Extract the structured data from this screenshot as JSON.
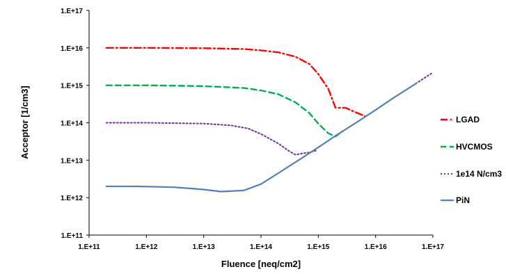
{
  "chart_data": {
    "type": "line",
    "xlabel": "Fluence [neq/cm2]",
    "ylabel": "Acceptor [1/cm3]",
    "x_scale": "log",
    "y_scale": "log",
    "xlim": [
      100000000000.0,
      1e+17
    ],
    "ylim": [
      100000000000.0,
      1e+17
    ],
    "x_ticks": [
      {
        "value": 100000000000.0,
        "label": "1.E+11"
      },
      {
        "value": 1000000000000.0,
        "label": "1.E+12"
      },
      {
        "value": 10000000000000.0,
        "label": "1.E+13"
      },
      {
        "value": 100000000000000.0,
        "label": "1.E+14"
      },
      {
        "value": 1000000000000000.0,
        "label": "1.E+15"
      },
      {
        "value": 1e+16,
        "label": "1.E+16"
      },
      {
        "value": 1e+17,
        "label": "1.E+17"
      }
    ],
    "y_ticks": [
      {
        "value": 100000000000.0,
        "label": "1.E+11"
      },
      {
        "value": 1000000000000.0,
        "label": "1.E+12"
      },
      {
        "value": 10000000000000.0,
        "label": "1.E+13"
      },
      {
        "value": 100000000000000.0,
        "label": "1.E+14"
      },
      {
        "value": 1000000000000000.0,
        "label": "1.E+15"
      },
      {
        "value": 1e+16,
        "label": "1.E+16"
      },
      {
        "value": 1e+17,
        "label": "1.E+17"
      }
    ],
    "grid": false,
    "legend_position": "right",
    "series": [
      {
        "name": "LGAD",
        "color": "#ff0000",
        "dash": "dashdot",
        "x": [
          200000000000.0,
          1000000000000.0,
          10000000000000.0,
          50000000000000.0,
          100000000000000.0,
          200000000000000.0,
          400000000000000.0,
          700000000000000.0,
          1000000000000000.0,
          1500000000000000.0,
          2000000000000000.0,
          3000000000000000.0,
          4500000000000000.0,
          6500000000000000.0
        ],
        "y": [
          1e+16,
          1e+16,
          9800000000000000.0,
          9300000000000000.0,
          8600000000000000.0,
          7600000000000000.0,
          5800000000000000.0,
          3700000000000000.0,
          2000000000000000.0,
          800000000000000.0,
          250000000000000.0,
          250000000000000.0,
          190000000000000.0,
          150000000000000.0
        ]
      },
      {
        "name": "HVCMOS",
        "color": "#00b050",
        "dash": "dash",
        "x": [
          200000000000.0,
          1000000000000.0,
          10000000000000.0,
          50000000000000.0,
          100000000000000.0,
          200000000000000.0,
          400000000000000.0,
          700000000000000.0,
          1000000000000000.0,
          1500000000000000.0,
          2000000000000000.0,
          2700000000000000.0
        ],
        "y": [
          1000000000000000.0,
          1000000000000000.0,
          950000000000000.0,
          850000000000000.0,
          730000000000000.0,
          580000000000000.0,
          350000000000000.0,
          180000000000000.0,
          95000000000000.0,
          52000000000000.0,
          43000000000000.0,
          60000000000000.0
        ]
      },
      {
        "name": "1e14 N/cm3",
        "color": "#7030a0",
        "dash": "dot",
        "x": [
          200000000000.0,
          1000000000000.0,
          10000000000000.0,
          30000000000000.0,
          60000000000000.0,
          100000000000000.0,
          200000000000000.0,
          300000000000000.0,
          400000000000000.0,
          500000000000000.0,
          700000000000000.0,
          900000000000000.0
        ],
        "y": [
          100000000000000.0,
          100000000000000.0,
          95000000000000.0,
          85000000000000.0,
          70000000000000.0,
          50000000000000.0,
          28000000000000.0,
          18000000000000.0,
          14000000000000.0,
          15000000000000.0,
          16000000000000.0,
          18000000000000.0
        ],
        "tail": {
          "x": [
            5e+16,
            1e+17
          ],
          "y": [
            1100000000000000.0,
            2200000000000000.0
          ]
        }
      },
      {
        "name": "PiN",
        "color": "#4f81bd",
        "dash": "solid",
        "x": [
          200000000000.0,
          700000000000.0,
          3000000000000.0,
          10000000000000.0,
          20000000000000.0,
          50000000000000.0,
          100000000000000.0,
          200000000000000.0,
          500000000000000.0,
          1000000000000000.0,
          2000000000000000.0,
          5000000000000000.0,
          1e+16,
          2e+16,
          5e+16
        ],
        "y": [
          2000000000000.0,
          2000000000000.0,
          1900000000000.0,
          1650000000000.0,
          1450000000000.0,
          1550000000000.0,
          2300000000000.0,
          4500000000000.0,
          11000000000000.0,
          22000000000000.0,
          45000000000000.0,
          110000000000000.0,
          220000000000000.0,
          450000000000000.0,
          1100000000000000.0
        ]
      }
    ]
  }
}
